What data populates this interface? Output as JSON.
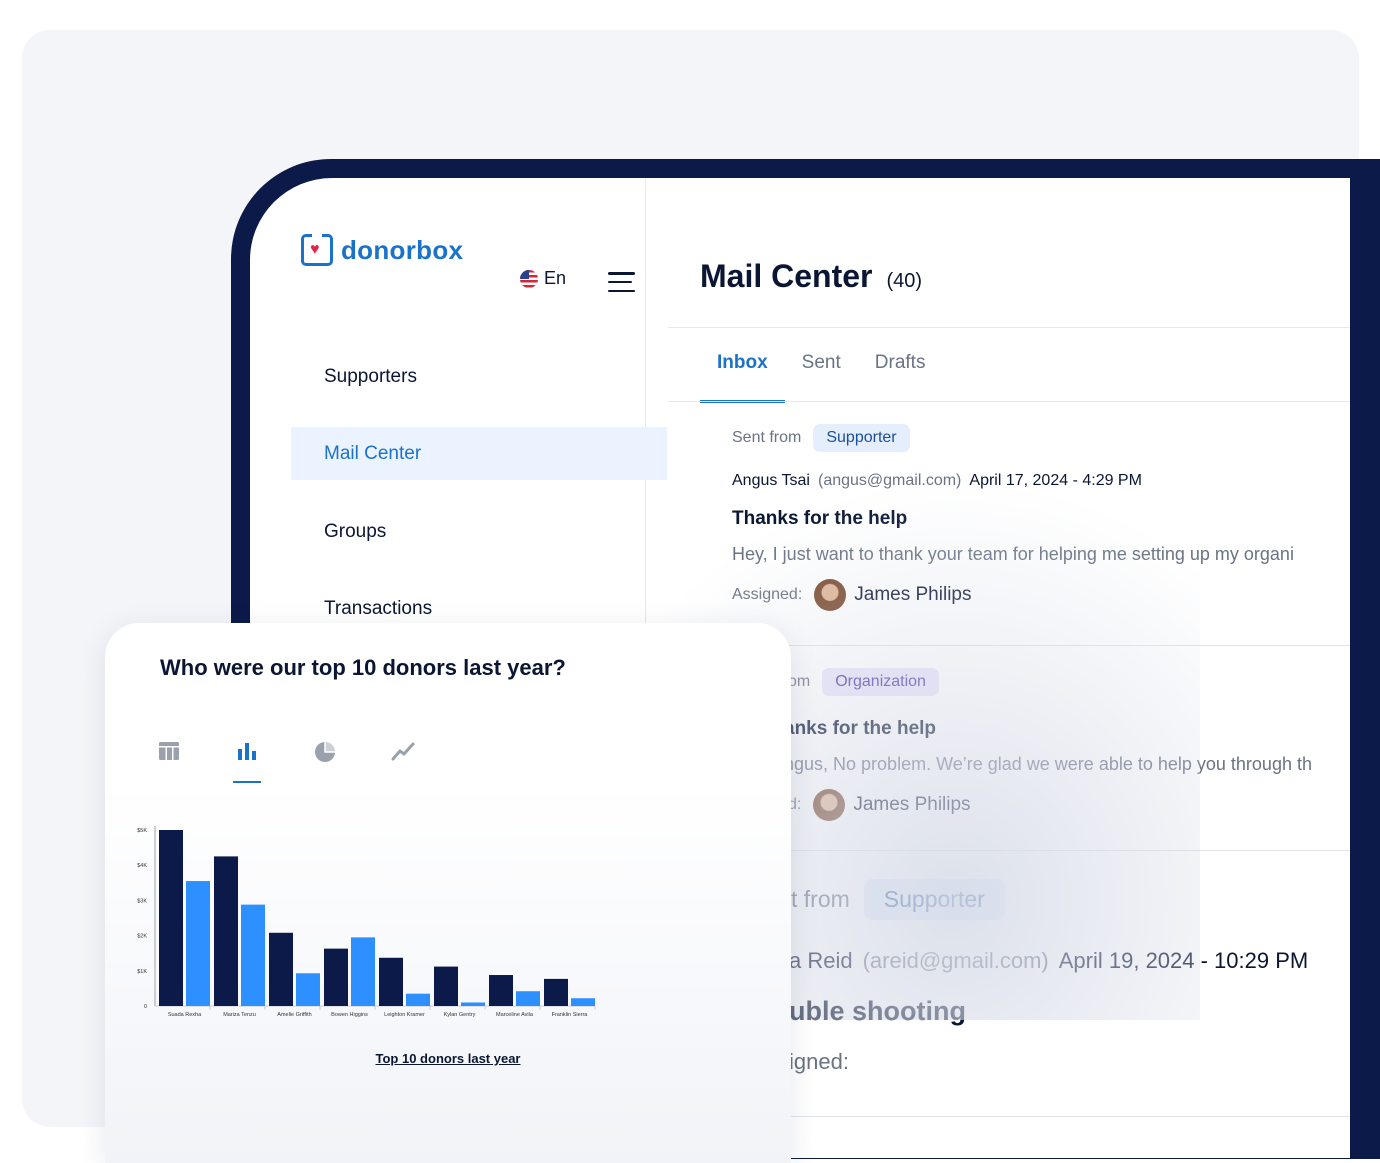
{
  "app": {
    "brand": "donorbox",
    "language": "En",
    "colors": {
      "brand": "#1a73c9",
      "navy": "#0c1a4a",
      "heart": "#e5234b",
      "bar_primary": "#0c1a4a",
      "bar_secondary": "#2e90ff"
    }
  },
  "sidebar": {
    "items": [
      {
        "label": "Supporters",
        "active": false
      },
      {
        "label": "Mail Center",
        "active": true
      },
      {
        "label": "Groups",
        "active": false
      },
      {
        "label": "Transactions",
        "active": false
      }
    ]
  },
  "mail": {
    "title": "Mail Center",
    "count": "(40)",
    "tabs": [
      {
        "label": "Inbox",
        "active": true
      },
      {
        "label": "Sent",
        "active": false
      },
      {
        "label": "Drafts",
        "active": false
      }
    ],
    "messages": [
      {
        "sent_from_label": "Sent from",
        "sender_type": "Supporter",
        "sender_name": "Angus Tsai",
        "sender_email": "(angus@gmail.com)",
        "date": "April 17, 2024 - 4:29 PM",
        "subject": "Thanks for the help",
        "preview": "Hey, I just want to thank your team for helping me setting up my organi",
        "assigned_label": "Assigned:",
        "assignee": "James Philips"
      },
      {
        "sent_from_label": "om",
        "sender_type": "Organization",
        "subject": "anks for the help",
        "preview": "ngus, No problem. We’re glad we were able to help you through th",
        "assigned_label": "d:",
        "assignee": "James Philips"
      },
      {
        "sent_from_label": "t from",
        "sender_type": "Supporter",
        "sender_name": "a Reid",
        "sender_email": "(areid@gmail.com)",
        "date": "April 19, 2024 - 10:29 PM",
        "subject": "uble shooting",
        "assigned_label": "igned:"
      }
    ]
  },
  "report": {
    "question": "Who were our top 10 donors last year?",
    "view_modes": [
      {
        "icon": "table-icon",
        "active": false
      },
      {
        "icon": "bar-chart-icon",
        "active": true
      },
      {
        "icon": "pie-chart-icon",
        "active": false
      },
      {
        "icon": "line-chart-icon",
        "active": false
      }
    ],
    "link_label": "Top 10 donors last year"
  },
  "chart_data": {
    "type": "bar",
    "categories": [
      "Suada Rexha",
      "Mariza Tenzu",
      "Amelie Griffith",
      "Bowen Higgins",
      "Leighton Kramer",
      "Kylan Gentry",
      "Marceline Avila",
      "Franklin Sierra"
    ],
    "series": [
      {
        "values": [
          5000,
          4250,
          2080,
          1630,
          1370,
          1120,
          880,
          770
        ]
      },
      {
        "values": [
          3550,
          2880,
          930,
          1950,
          350,
          100,
          420,
          220
        ]
      }
    ],
    "yticks": [
      "0",
      "$1K",
      "$2K",
      "$3K",
      "$4K",
      "$5K"
    ],
    "ylim": [
      0,
      5000
    ],
    "legend": "none"
  }
}
